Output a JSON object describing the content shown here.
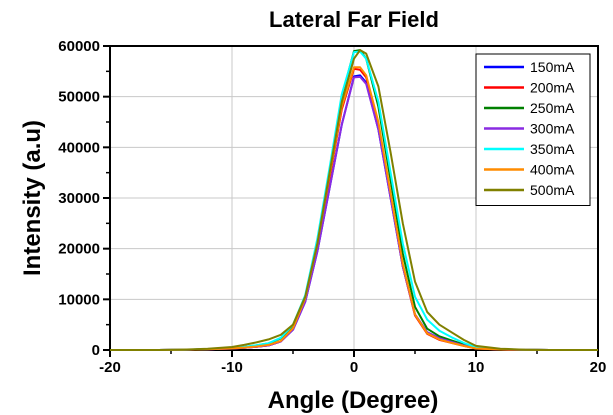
{
  "chart_data": {
    "type": "line",
    "title": "Lateral Far Field",
    "xlabel": "Angle (Degree)",
    "ylabel": "Intensity (a.u)",
    "xlim": [
      -20,
      20
    ],
    "ylim": [
      0,
      60000
    ],
    "xticks": [
      -20,
      -10,
      0,
      10,
      20
    ],
    "yticks": [
      0,
      10000,
      20000,
      30000,
      40000,
      50000,
      60000
    ],
    "grid": true,
    "legend_position": "top-right",
    "x": [
      -20,
      -16,
      -14,
      -12,
      -10,
      -9,
      -8,
      -7,
      -6,
      -5,
      -4,
      -3,
      -2,
      -1,
      0,
      0.5,
      1,
      2,
      3,
      4,
      5,
      6,
      7,
      8,
      9,
      10,
      12,
      14,
      16,
      20
    ],
    "series": [
      {
        "name": "150mA",
        "color": "#0000ff",
        "values": [
          0,
          0,
          50,
          150,
          300,
          450,
          650,
          900,
          1700,
          4000,
          9500,
          19500,
          32000,
          44500,
          54000,
          54200,
          52800,
          43500,
          30000,
          16500,
          7000,
          3500,
          2300,
          1600,
          900,
          350,
          100,
          30,
          0,
          0
        ]
      },
      {
        "name": "200mA",
        "color": "#ff0000",
        "values": [
          0,
          0,
          50,
          150,
          300,
          450,
          650,
          900,
          1700,
          4100,
          9800,
          20500,
          34000,
          47500,
          55500,
          55300,
          53800,
          44500,
          30500,
          16500,
          6800,
          3200,
          2000,
          1400,
          800,
          300,
          100,
          30,
          0,
          0
        ]
      },
      {
        "name": "250mA",
        "color": "#008000",
        "values": [
          0,
          0,
          60,
          180,
          400,
          600,
          900,
          1300,
          2300,
          4800,
          10500,
          21500,
          35500,
          50000,
          59000,
          59200,
          57500,
          48000,
          33500,
          19000,
          8500,
          4200,
          2700,
          1900,
          1100,
          450,
          150,
          40,
          0,
          0
        ]
      },
      {
        "name": "300mA",
        "color": "#8a2be2",
        "values": [
          0,
          0,
          50,
          150,
          300,
          450,
          650,
          900,
          1700,
          4000,
          9500,
          19500,
          32000,
          44500,
          53800,
          53900,
          52500,
          43500,
          30000,
          16500,
          7000,
          3500,
          2300,
          1600,
          900,
          350,
          100,
          30,
          0,
          0
        ]
      },
      {
        "name": "350mA",
        "color": "#00ffff",
        "values": [
          0,
          0,
          60,
          180,
          400,
          600,
          950,
          1350,
          2400,
          5000,
          10800,
          22000,
          36000,
          50500,
          58800,
          58900,
          57500,
          49000,
          35000,
          21000,
          10500,
          6000,
          3800,
          2500,
          1400,
          550,
          150,
          40,
          0,
          0
        ]
      },
      {
        "name": "400mA",
        "color": "#ff8c00",
        "values": [
          0,
          0,
          50,
          150,
          320,
          480,
          700,
          1000,
          1800,
          4300,
          10200,
          21000,
          34500,
          48000,
          55800,
          55800,
          54200,
          45000,
          31000,
          17000,
          7000,
          3300,
          2100,
          1400,
          800,
          300,
          100,
          30,
          0,
          0
        ]
      },
      {
        "name": "500mA",
        "color": "#808000",
        "values": [
          0,
          0,
          70,
          250,
          600,
          1000,
          1500,
          2100,
          3000,
          5000,
          10500,
          21000,
          35000,
          49000,
          57500,
          59200,
          58500,
          52000,
          39000,
          25000,
          13500,
          7500,
          5000,
          3500,
          2000,
          800,
          250,
          60,
          0,
          0
        ]
      }
    ]
  }
}
